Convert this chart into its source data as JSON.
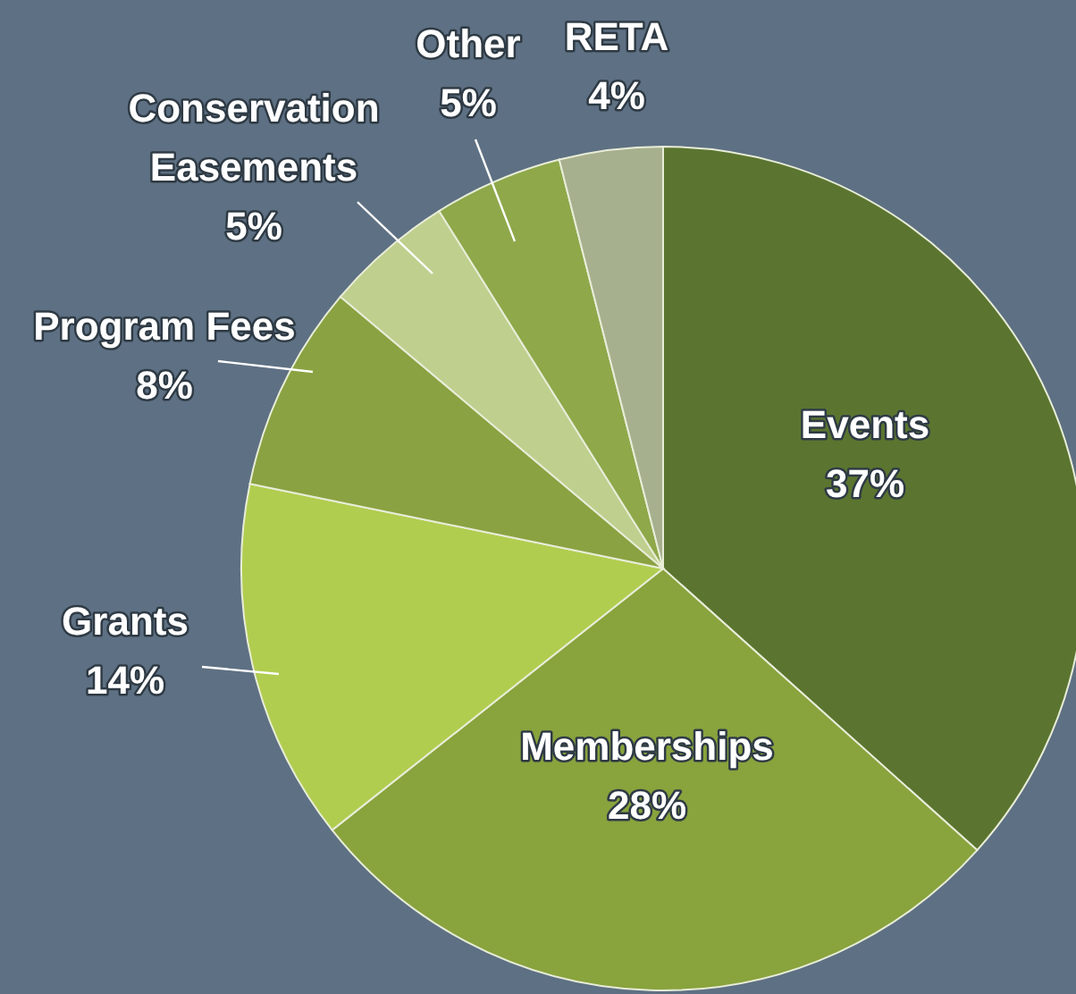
{
  "chart_data": {
    "type": "pie",
    "categories": [
      "Events",
      "Memberships",
      "Grants",
      "Program Fees",
      "Conservation Easements",
      "Other",
      "RETA"
    ],
    "values": [
      37,
      28,
      14,
      8,
      5,
      5,
      4
    ],
    "value_labels": [
      "37%",
      "28%",
      "14%",
      "8%",
      "5%",
      "5%",
      "4%"
    ],
    "colors": [
      "#5b7530",
      "#89a33d",
      "#b1cd4f",
      "#8aa241",
      "#bfcf8e",
      "#8ea84a",
      "#a7b08e"
    ]
  }
}
